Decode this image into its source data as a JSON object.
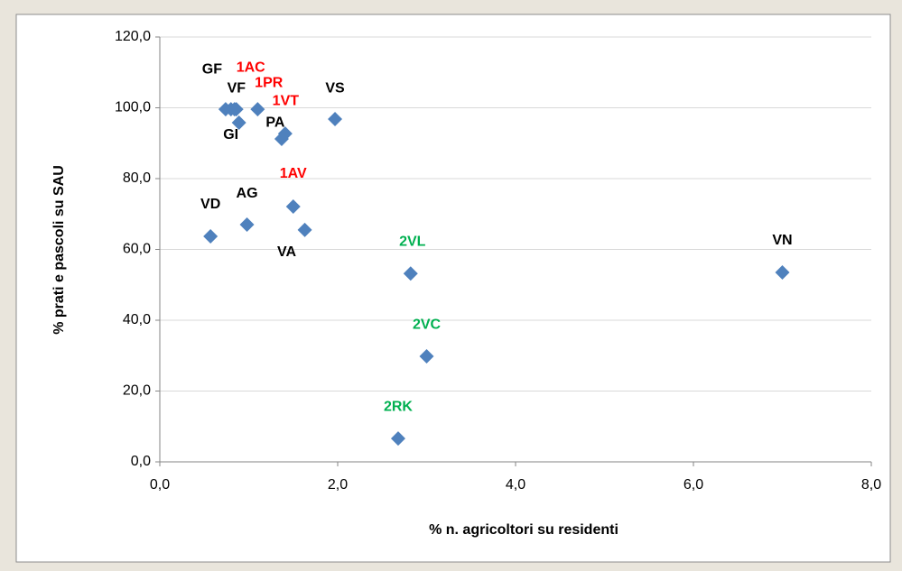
{
  "chart_data": {
    "type": "scatter",
    "x_label": "% n. agricoltori su residenti",
    "y_label": "% prati e pascoli su SAU",
    "color": "#4f81bd",
    "grid": true,
    "xlim": [
      0,
      8
    ],
    "ylim": [
      0,
      120
    ],
    "xticks": [
      {
        "value": 0,
        "label": "0,0"
      },
      {
        "value": 2,
        "label": "2,0"
      },
      {
        "value": 4,
        "label": "4,0"
      },
      {
        "value": 6,
        "label": "6,0"
      },
      {
        "value": 8,
        "label": "8,0"
      }
    ],
    "yticks": [
      {
        "value": 0,
        "label": "0,0"
      },
      {
        "value": 20,
        "label": "20,0"
      },
      {
        "value": 40,
        "label": "40,0"
      },
      {
        "value": 60,
        "label": "60,0"
      },
      {
        "value": 80,
        "label": "80,0"
      },
      {
        "value": 100,
        "label": "100,0"
      },
      {
        "value": 120,
        "label": "120,0"
      }
    ],
    "x": [
      0.57,
      0.98,
      1.63,
      1.5,
      1.97,
      1.41,
      1.37,
      0.89,
      1.1,
      0.74,
      0.8,
      0.86,
      0.84,
      2.82,
      3.0,
      2.68,
      7.0
    ],
    "values": [
      63.7,
      67.0,
      65.5,
      72.1,
      96.8,
      92.7,
      91.2,
      95.8,
      99.6,
      99.6,
      99.6,
      99.6,
      99.6,
      53.2,
      29.8,
      6.6,
      53.5
    ],
    "labels": [
      "VD",
      "AG",
      "VA",
      "1AV",
      "VS",
      "PA",
      null,
      "GI",
      "1VT",
      "GF",
      "VF",
      "1AC",
      "1PR",
      "2VL",
      "2VC",
      "2RK",
      "VN"
    ],
    "label_colors": [
      "#000000",
      "#000000",
      "#000000",
      "#ff0000",
      "#000000",
      "#000000",
      null,
      "#000000",
      "#ff0000",
      "#000000",
      "#000000",
      "#ff0000",
      "#ff0000",
      "#00b050",
      "#00b050",
      "#00b050",
      "#000000"
    ]
  }
}
